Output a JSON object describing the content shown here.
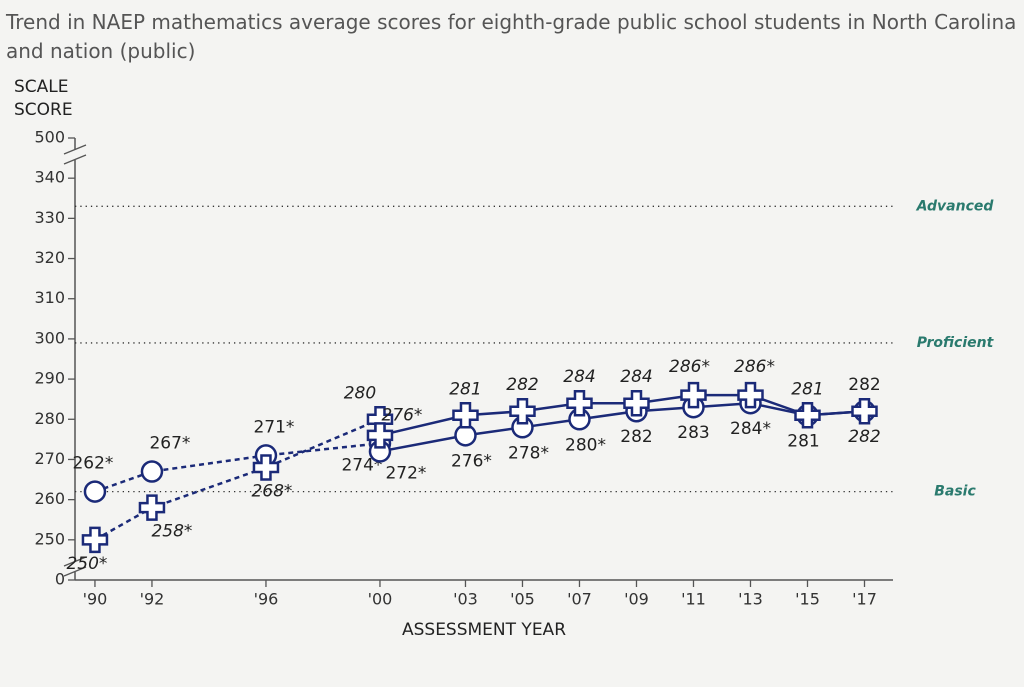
{
  "chart_data": {
    "type": "line",
    "title": "Trend in NAEP mathematics average scores for eighth-grade public school students in North Carolina and nation (public)",
    "ylabel_lines": [
      "SCALE",
      "SCORE"
    ],
    "xlabel": "ASSESSMENT YEAR",
    "xlim": [
      1989.3,
      2018
    ],
    "xticks": [
      {
        "value": 1990,
        "label": "'90"
      },
      {
        "value": 1992,
        "label": "'92"
      },
      {
        "value": 1996,
        "label": "'96"
      },
      {
        "value": 2000,
        "label": "'00"
      },
      {
        "value": 2003,
        "label": "'03"
      },
      {
        "value": 2005,
        "label": "'05"
      },
      {
        "value": 2007,
        "label": "'07"
      },
      {
        "value": 2009,
        "label": "'09"
      },
      {
        "value": 2011,
        "label": "'11"
      },
      {
        "value": 2013,
        "label": "'13"
      },
      {
        "value": 2015,
        "label": "'15"
      },
      {
        "value": 2017,
        "label": "'17"
      }
    ],
    "ylim": [
      240,
      350
    ],
    "yticks": [
      250,
      260,
      270,
      280,
      290,
      300,
      310,
      320,
      330,
      340
    ],
    "axis_break_ticks": [
      0,
      500
    ],
    "reference_lines": [
      {
        "value": 333,
        "label": "Advanced"
      },
      {
        "value": 299,
        "label": "Proficient"
      },
      {
        "value": 262,
        "label": "Basic"
      }
    ],
    "series": [
      {
        "color": "#1b2a78",
        "marker": "circle",
        "dash": true,
        "label_style": "normal",
        "x": [
          1990,
          1992,
          1996,
          2000
        ],
        "values": [
          262,
          267,
          271,
          274
        ],
        "value_labels": [
          "262*",
          "267*",
          "271*",
          "274*"
        ]
      },
      {
        "color": "#1b2a78",
        "marker": "circle",
        "dash": false,
        "label_style": "normal",
        "x": [
          2000,
          2003,
          2005,
          2007,
          2009,
          2011,
          2013,
          2015,
          2017
        ],
        "values": [
          272,
          276,
          278,
          280,
          282,
          283,
          284,
          281,
          282
        ],
        "value_labels": [
          "272*",
          "276*",
          "278*",
          "280*",
          "282",
          "283",
          "284*",
          "281",
          "282"
        ]
      },
      {
        "color": "#1b2a78",
        "marker": "plus",
        "dash": true,
        "label_style": "italic",
        "x": [
          1990,
          1992,
          1996,
          2000
        ],
        "values": [
          250,
          258,
          268,
          280
        ],
        "value_labels": [
          "250*",
          "258*",
          "268*",
          "280"
        ]
      },
      {
        "color": "#1b2a78",
        "marker": "plus",
        "dash": false,
        "label_style": "italic",
        "x": [
          2000,
          2003,
          2005,
          2007,
          2009,
          2011,
          2013,
          2015,
          2017
        ],
        "values": [
          276,
          281,
          282,
          284,
          284,
          286,
          286,
          281,
          282
        ],
        "value_labels": [
          "276*",
          "281",
          "282",
          "284",
          "284",
          "286*",
          "286*",
          "281",
          "282"
        ]
      }
    ]
  }
}
